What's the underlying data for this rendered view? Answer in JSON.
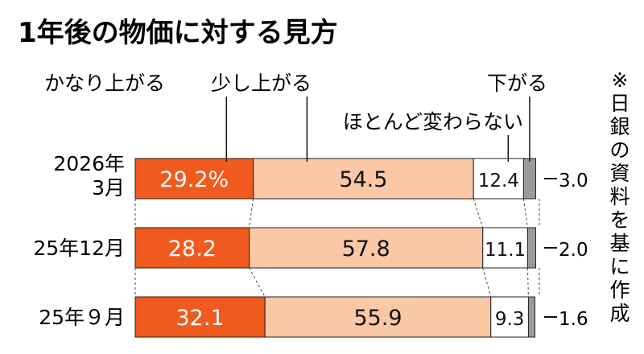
{
  "chart_data": {
    "type": "bar",
    "orientation": "horizontal",
    "stacked": "100%",
    "title": "1年後の物価に対する見方",
    "note": "※日銀の資料を基に作成",
    "categories": [
      [
        "2026年",
        "3月"
      ],
      [
        "25年12月"
      ],
      [
        "25年９月"
      ]
    ],
    "series": [
      {
        "name": "かなり上がる",
        "color": "#f15a1e",
        "values": [
          29.2,
          28.2,
          32.1
        ],
        "labels": [
          "29.2%",
          "28.2",
          "32.1"
        ]
      },
      {
        "name": "少し上がる",
        "color": "#fbc8a6",
        "values": [
          54.5,
          57.8,
          55.9
        ],
        "labels": [
          "54.5",
          "57.8",
          "55.9"
        ]
      },
      {
        "name": "ほとんど変わらない",
        "color": "#ffffff",
        "values": [
          12.4,
          11.1,
          9.3
        ],
        "labels": [
          "12.4",
          "11.1",
          "9.3"
        ]
      },
      {
        "name": "下がる",
        "color": "#9a9a9a",
        "values": [
          3.0,
          2.0,
          1.6
        ],
        "labels": [
          "3.0",
          "2.0",
          "1.6"
        ]
      }
    ],
    "xlim": [
      0,
      100
    ],
    "grid": false,
    "legend": "top, labels with leader lines"
  }
}
